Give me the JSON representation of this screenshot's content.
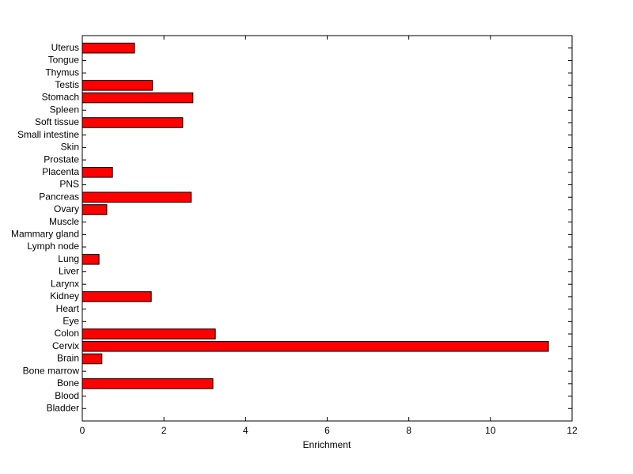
{
  "chart_data": {
    "type": "barh",
    "x_label": "Enrichment",
    "categories": [
      "Bladder",
      "Blood",
      "Bone",
      "Bone marrow",
      "Brain",
      "Cervix",
      "Colon",
      "Eye",
      "Heart",
      "Kidney",
      "Larynx",
      "Liver",
      "Lung",
      "Lymph node",
      "Mammary gland",
      "Muscle",
      "Ovary",
      "Pancreas",
      "PNS",
      "Placenta",
      "Prostate",
      "Skin",
      "Small intestine",
      "Soft tissue",
      "Spleen",
      "Stomach",
      "Testis",
      "Thymus",
      "Tongue",
      "Uterus"
    ],
    "values": [
      0,
      0,
      3.2,
      0,
      0.48,
      11.42,
      3.26,
      0,
      0,
      1.69,
      0,
      0,
      0.41,
      0,
      0,
      0,
      0.6,
      2.67,
      0,
      0.74,
      0,
      0,
      0,
      2.46,
      0,
      2.71,
      1.72,
      0,
      0,
      1.28
    ],
    "color": "#ff0000",
    "xlim": [
      0,
      12
    ],
    "xticks": [
      0,
      2,
      4,
      6,
      8,
      10,
      12
    ]
  }
}
